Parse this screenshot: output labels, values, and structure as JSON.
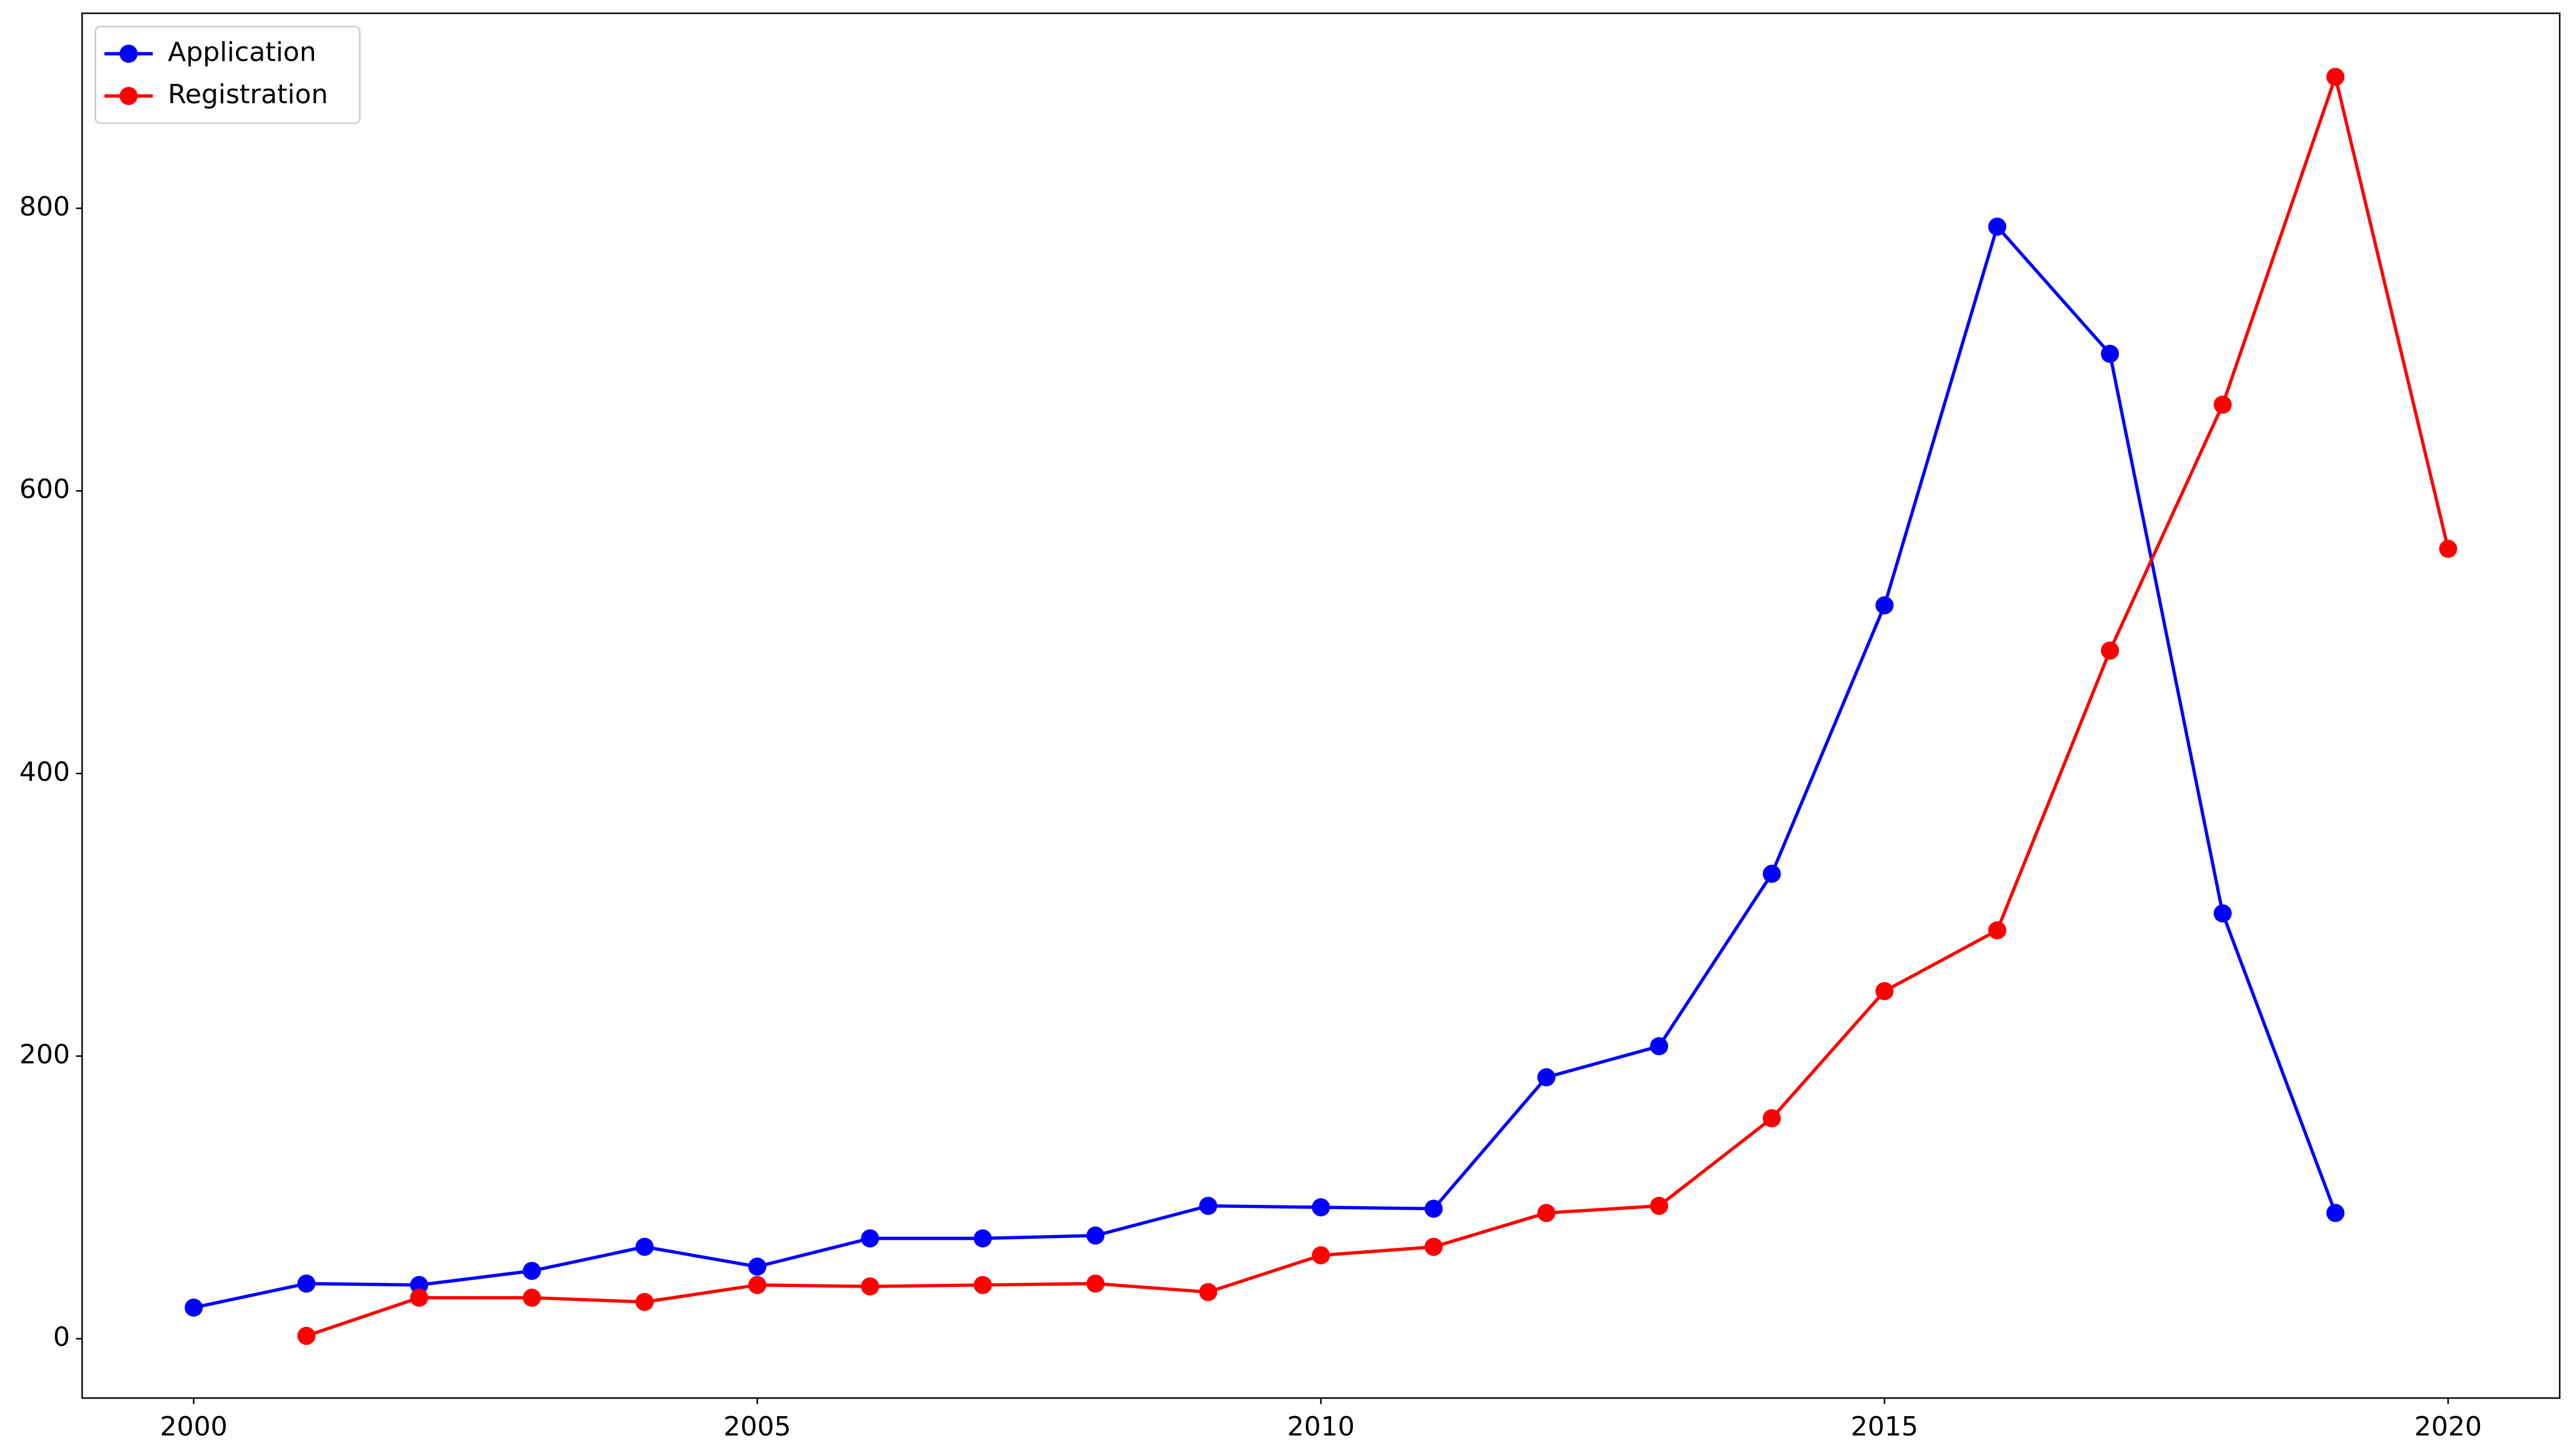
{
  "chart_data": {
    "type": "line",
    "x": [
      2000,
      2001,
      2002,
      2003,
      2004,
      2005,
      2006,
      2007,
      2008,
      2009,
      2010,
      2011,
      2012,
      2013,
      2014,
      2015,
      2016,
      2017,
      2018,
      2019,
      2020
    ],
    "series": [
      {
        "name": "Application",
        "color": "#0000ff",
        "values": [
          22,
          39,
          38,
          48,
          65,
          51,
          71,
          71,
          73,
          94,
          93,
          92,
          185,
          207,
          329,
          519,
          787,
          697,
          301,
          89,
          null
        ]
      },
      {
        "name": "Registration",
        "color": "#ff0000",
        "values": [
          null,
          2,
          29,
          29,
          26,
          38,
          37,
          38,
          39,
          33,
          59,
          65,
          89,
          94,
          156,
          246,
          289,
          487,
          661,
          893,
          559
        ]
      }
    ],
    "xlim": [
      1999.01,
      2020.99
    ],
    "xticks": [
      2000,
      2005,
      2010,
      2015,
      2020
    ],
    "ylim": [
      -42,
      938
    ],
    "yticks": [
      0,
      200,
      400,
      600,
      800
    ],
    "grid": false,
    "legend": "upper left"
  }
}
